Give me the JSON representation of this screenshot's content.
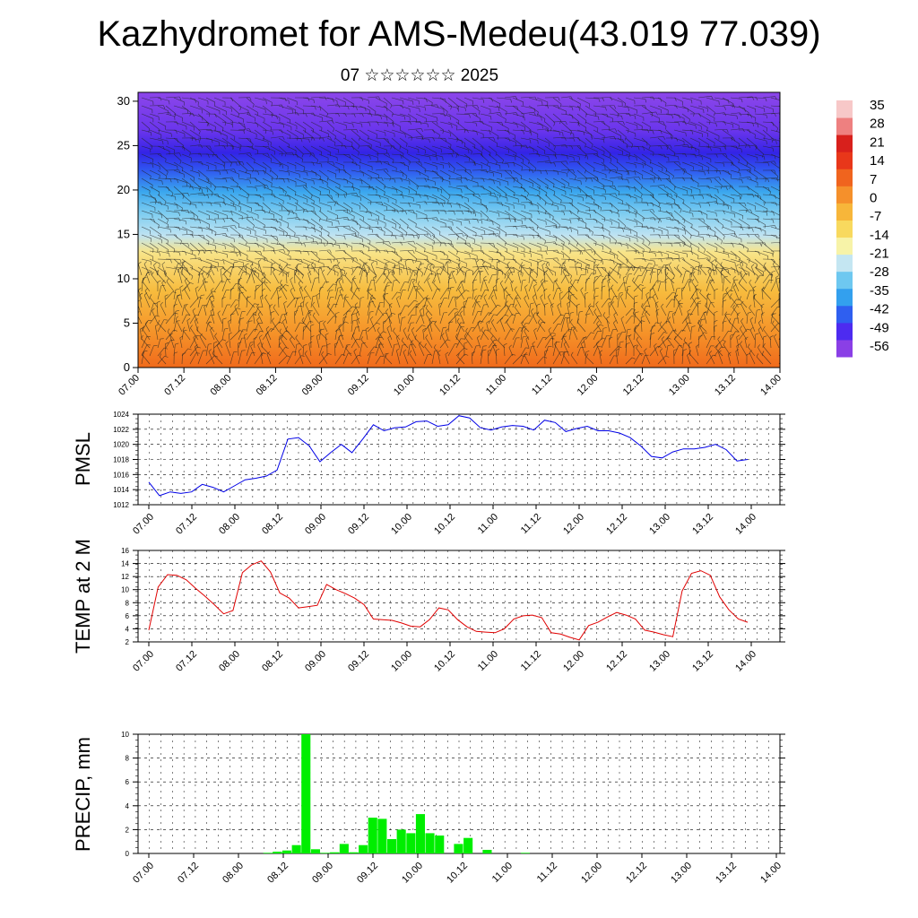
{
  "title": "Kazhydromet for AMS-Medeu(43.019 77.039)",
  "subtitle": "07 ☆☆☆☆☆☆ 2025",
  "colors": {
    "pmsl_line": "#0000e6",
    "temp_line": "#e00000",
    "precip_bar": "#00ee00",
    "colorbar": [
      "#8a3fe6",
      "#4d2bf0",
      "#2f5ff0",
      "#33a0ee",
      "#6ec8f0",
      "#c4e6f2",
      "#f7f3a8",
      "#f8d95e",
      "#f7b63a",
      "#f5902b",
      "#f0641e",
      "#e8371a",
      "#d8201c",
      "#ee8080",
      "#f7c8c8"
    ]
  },
  "chart_data": [
    {
      "type": "heatmap",
      "name": "cross-section",
      "x_ticks": [
        "07.00",
        "07.12",
        "08.00",
        "08.12",
        "09.00",
        "09.12",
        "10.00",
        "10.12",
        "11.00",
        "11.12",
        "12.00",
        "12.12",
        "13.00",
        "13.12",
        "14.00"
      ],
      "y_ticks": [
        "0",
        "5",
        "10",
        "15",
        "20",
        "25",
        "30"
      ],
      "ylim": [
        0,
        31
      ],
      "colorbar_labels": [
        "35",
        "28",
        "21",
        "14",
        "7",
        "0",
        "-7",
        "-14",
        "-21",
        "-28",
        "-35",
        "-42",
        "-49",
        "-56"
      ]
    },
    {
      "type": "line",
      "ylabel": "PMSL",
      "x_ticks": [
        "07.00",
        "07.12",
        "08.00",
        "08.12",
        "09.00",
        "09.12",
        "10.00",
        "10.12",
        "11.00",
        "11.12",
        "12.00",
        "12.12",
        "13.00",
        "13.12",
        "14.00"
      ],
      "y_ticks": [
        "1012",
        "1014",
        "1016",
        "1018",
        "1020",
        "1022",
        "1024"
      ],
      "ylim": [
        1012,
        1024
      ],
      "values": [
        1015.0,
        1013.2,
        1013.7,
        1013.5,
        1013.7,
        1014.7,
        1014.3,
        1013.7,
        1014.5,
        1015.3,
        1015.5,
        1015.8,
        1016.6,
        1020.7,
        1020.9,
        1019.8,
        1017.7,
        1018.9,
        1020.0,
        1018.9,
        1020.7,
        1022.6,
        1021.8,
        1022.2,
        1022.3,
        1023.0,
        1023.1,
        1022.4,
        1022.6,
        1023.8,
        1023.5,
        1022.2,
        1021.9,
        1022.3,
        1022.5,
        1022.4,
        1021.9,
        1023.2,
        1022.9,
        1021.7,
        1022.1,
        1022.4,
        1021.8,
        1021.8,
        1021.5,
        1020.9,
        1019.8,
        1018.4,
        1018.2,
        1019.0,
        1019.4,
        1019.4,
        1019.6,
        1020.0,
        1019.3,
        1017.8,
        1018.0
      ]
    },
    {
      "type": "line",
      "ylabel": "TEMP at 2 M",
      "x_ticks": [
        "07.00",
        "07.12",
        "08.00",
        "08.12",
        "09.00",
        "09.12",
        "10.00",
        "10.12",
        "11.00",
        "11.12",
        "12.00",
        "12.12",
        "13.00",
        "13.12",
        "14.00"
      ],
      "y_ticks": [
        "2",
        "4",
        "6",
        "8",
        "10",
        "12",
        "14",
        "16"
      ],
      "ylim": [
        2,
        16
      ],
      "values": [
        3.8,
        10.4,
        12.3,
        12.2,
        11.5,
        10.2,
        9.0,
        7.7,
        6.3,
        6.8,
        12.6,
        13.8,
        14.4,
        12.7,
        9.5,
        8.7,
        7.2,
        7.4,
        7.6,
        10.8,
        10.0,
        9.4,
        8.7,
        7.7,
        5.5,
        5.4,
        5.3,
        4.9,
        4.4,
        4.3,
        5.4,
        7.2,
        6.9,
        5.4,
        4.3,
        3.6,
        3.5,
        3.4,
        4.0,
        5.5,
        6.0,
        6.1,
        5.7,
        3.4,
        3.2,
        2.7,
        2.3,
        4.5,
        5.0,
        5.8,
        6.5,
        6.1,
        5.5,
        3.8,
        3.5,
        3.1,
        2.8,
        9.8,
        12.5,
        12.9,
        12.2,
        8.9,
        6.9,
        5.5,
        5.0
      ]
    },
    {
      "type": "bar",
      "ylabel": "PRECIP, mm",
      "x_ticks": [
        "07.00",
        "07.12",
        "08.00",
        "08.12",
        "09.00",
        "09.12",
        "10.00",
        "10.12",
        "11.00",
        "11.12",
        "12.00",
        "12.12",
        "13.00",
        "13.12",
        "14.00"
      ],
      "y_ticks": [
        "0",
        "2",
        "4",
        "6",
        "8",
        "10"
      ],
      "ylim": [
        0,
        10
      ],
      "values": [
        0,
        0,
        0,
        0,
        0,
        0,
        0,
        0,
        0,
        0,
        0,
        0,
        0.05,
        0.15,
        0.25,
        0.7,
        10,
        0.35,
        0.05,
        0.1,
        0.8,
        0.1,
        0.7,
        3.0,
        2.9,
        1.2,
        2.0,
        1.7,
        3.3,
        1.7,
        1.5,
        0,
        0.8,
        1.3,
        0,
        0.3,
        0,
        0,
        0,
        0.05,
        0,
        0,
        0,
        0,
        0,
        0,
        0,
        0,
        0,
        0,
        0,
        0,
        0,
        0,
        0,
        0,
        0,
        0,
        0,
        0,
        0,
        0,
        0,
        0,
        0,
        0,
        0
      ]
    }
  ]
}
